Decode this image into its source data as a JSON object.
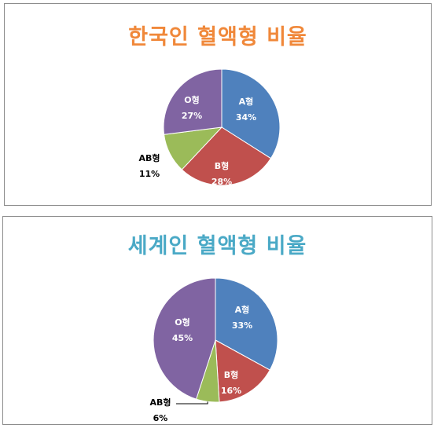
{
  "theme": {
    "title_color_1": "#f0883a",
    "title_color_2": "#4aa9c6",
    "slice_colors": [
      "#4f81bd",
      "#c0504d",
      "#9bbb59",
      "#8064a2"
    ]
  },
  "chart_data": [
    {
      "type": "pie",
      "title": "한국인 혈액형 비율",
      "categories": [
        "A형",
        "B형",
        "AB형",
        "O형"
      ],
      "values": [
        34,
        28,
        11,
        27
      ],
      "value_labels": [
        "34%",
        "28%",
        "11%",
        "27%"
      ],
      "start_angle_deg": 0,
      "direction": "clockwise",
      "legend": "none"
    },
    {
      "type": "pie",
      "title": "세계인 혈액형 비율",
      "categories": [
        "A형",
        "B형",
        "AB형",
        "O형"
      ],
      "values": [
        33,
        16,
        6,
        45
      ],
      "value_labels": [
        "33%",
        "16%",
        "6%",
        "45%"
      ],
      "start_angle_deg": 0,
      "direction": "clockwise",
      "legend": "none"
    }
  ]
}
